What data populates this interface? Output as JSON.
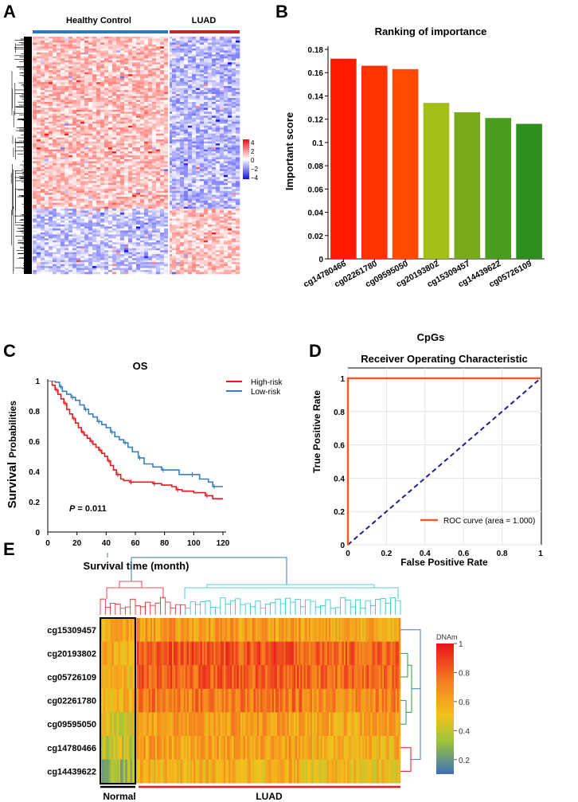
{
  "panels": {
    "A": "A",
    "B": "B",
    "C": "C",
    "D": "D",
    "E": "E"
  },
  "colors": {
    "blue_group": "#2d7bb6",
    "red_group": "#c0272d",
    "bar_red": "#ff1a00",
    "bar_orange": "#ff5a1a",
    "bar_yellowgreen": "#a6be1a",
    "bar_green": "#4fa01e",
    "km_high": "#e8191e",
    "km_low": "#3a7ebd",
    "roc_line": "#f05a28",
    "roc_diag": "#1f1f8f"
  },
  "chart_data": [
    {
      "id": "A",
      "type": "heatmap",
      "groups": [
        {
          "name": "Healthy Control",
          "color": "#2d7bb6"
        },
        {
          "name": "LUAD",
          "color": "#c0272d"
        }
      ],
      "color_scale": {
        "ticks": [
          "4",
          "2",
          "0",
          "−2",
          "−4"
        ],
        "min": -4,
        "max": 4
      }
    },
    {
      "id": "B",
      "type": "bar",
      "title": "Ranking of importance",
      "xlabel": "CpGs",
      "ylabel": "Important score",
      "categories": [
        "cg14780466",
        "cg02261780",
        "cg09595050",
        "cg20193802",
        "cg15309457",
        "cg14439622",
        "cg05726109"
      ],
      "values": [
        0.172,
        0.166,
        0.163,
        0.134,
        0.126,
        0.121,
        0.116
      ],
      "bar_colors": [
        "#ff1a00",
        "#ff3300",
        "#ff4a00",
        "#a6be1a",
        "#78aa1e",
        "#4a9e1e",
        "#2f8f1e"
      ],
      "ylim": [
        0,
        0.18
      ],
      "yticks": [
        "0",
        "0.02",
        "0.04",
        "0.06",
        "0.08",
        "0.1",
        "0.12",
        "0.14",
        "0.16",
        "0.18"
      ]
    },
    {
      "id": "C",
      "type": "line",
      "title": "OS",
      "xlabel": "Survival time (month)",
      "ylabel_main": "Survival",
      "ylabel_sub": "Probabilities",
      "xlim": [
        0,
        120
      ],
      "ylim": [
        0,
        1
      ],
      "xticks": [
        "0",
        "20",
        "40",
        "60",
        "80",
        "100",
        "120"
      ],
      "yticks": [
        "0",
        "0.2",
        "0.4",
        "0.6",
        "0.8",
        "1"
      ],
      "pvalue_label": "P",
      "pvalue_text": " = 0.011",
      "series": [
        {
          "name": "High-risk",
          "color": "#e8191e",
          "x": [
            0,
            3,
            5,
            7,
            9,
            11,
            13,
            15,
            17,
            19,
            21,
            23,
            25,
            27,
            29,
            31,
            33,
            35,
            37,
            39,
            41,
            43,
            45,
            47,
            50,
            52,
            56,
            60,
            66,
            72,
            78,
            85,
            88,
            92,
            100,
            108,
            113,
            120
          ],
          "y": [
            1.0,
            0.97,
            0.94,
            0.91,
            0.88,
            0.85,
            0.81,
            0.78,
            0.75,
            0.72,
            0.69,
            0.66,
            0.64,
            0.62,
            0.6,
            0.58,
            0.56,
            0.54,
            0.52,
            0.5,
            0.47,
            0.44,
            0.41,
            0.38,
            0.35,
            0.34,
            0.33,
            0.33,
            0.33,
            0.32,
            0.31,
            0.3,
            0.28,
            0.27,
            0.26,
            0.24,
            0.22,
            0.22
          ]
        },
        {
          "name": "Low-risk",
          "color": "#3a7ebd",
          "x": [
            0,
            5,
            8,
            10,
            13,
            16,
            19,
            22,
            25,
            28,
            31,
            34,
            37,
            40,
            43,
            46,
            49,
            52,
            55,
            58,
            62,
            66,
            72,
            78,
            86,
            90,
            98,
            104,
            110,
            113,
            120
          ],
          "y": [
            1.0,
            0.99,
            0.96,
            0.93,
            0.91,
            0.89,
            0.87,
            0.84,
            0.81,
            0.78,
            0.76,
            0.73,
            0.71,
            0.69,
            0.66,
            0.63,
            0.61,
            0.59,
            0.56,
            0.53,
            0.49,
            0.45,
            0.43,
            0.41,
            0.41,
            0.38,
            0.38,
            0.35,
            0.33,
            0.3,
            0.3
          ]
        }
      ]
    },
    {
      "id": "D",
      "type": "line",
      "title": "Receiver Operating Characteristic",
      "xlabel": "False Positive Rate",
      "ylabel": "True Positive Rate",
      "xlim": [
        0,
        1
      ],
      "ylim": [
        0,
        1
      ],
      "xticks": [
        "0",
        "0.2",
        "0.4",
        "0.6",
        "0.8",
        "1"
      ],
      "yticks": [
        "0",
        "0.2",
        "0.4",
        "0.6",
        "0.8",
        "1"
      ],
      "legend": "ROC curve (area = 1.000)",
      "series": [
        {
          "name": "ROC curve",
          "x": [
            0,
            0,
            1
          ],
          "y": [
            0,
            1,
            1
          ]
        },
        {
          "name": "chance",
          "x": [
            0,
            1
          ],
          "y": [
            0,
            1
          ]
        }
      ]
    },
    {
      "id": "E",
      "type": "heatmap",
      "rows": [
        "cg15309457",
        "cg20193802",
        "cg05726109",
        "cg02261780",
        "cg09595050",
        "cg14780466",
        "cg14439622"
      ],
      "groups": [
        {
          "name": "Normal",
          "color": "#000000"
        },
        {
          "name": "LUAD",
          "color": "#e8191e"
        }
      ],
      "colorbar_title": "DNAm",
      "colorbar_ticks": [
        "1",
        "0.8",
        "0.6",
        "0.4",
        "0.2"
      ],
      "colorbar_range": [
        0.1,
        1
      ]
    }
  ]
}
